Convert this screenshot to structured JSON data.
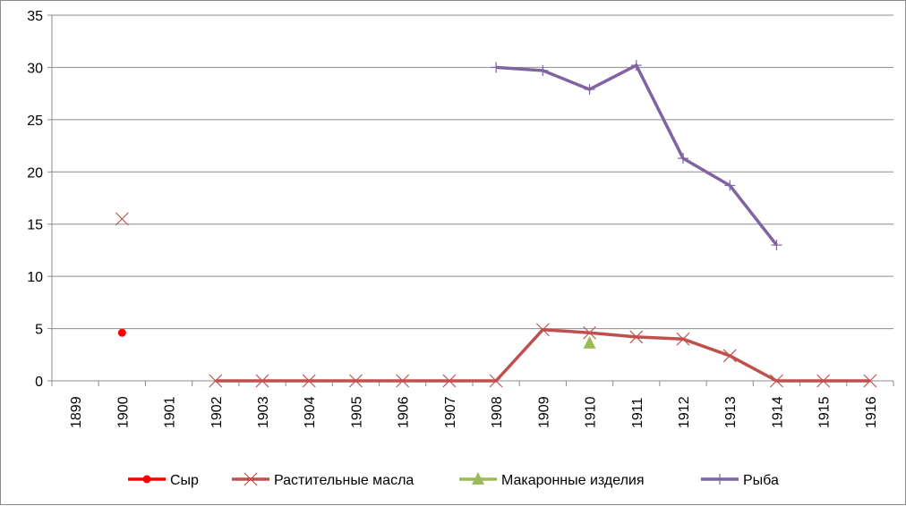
{
  "chart_data": {
    "type": "line",
    "categories": [
      "1899",
      "1900",
      "1901",
      "1902",
      "1903",
      "1904",
      "1905",
      "1906",
      "1907",
      "1908",
      "1909",
      "1910",
      "1911",
      "1912",
      "1913",
      "1914",
      "1915",
      "1916"
    ],
    "ylim": [
      0,
      35
    ],
    "yticks": [
      0,
      5,
      10,
      15,
      20,
      25,
      30,
      35
    ],
    "grid": true,
    "legend_position": "bottom",
    "series": [
      {
        "name": "Сыр",
        "color": "#ff0000",
        "marker": "circle",
        "values": [
          null,
          4.6,
          null,
          null,
          null,
          null,
          null,
          null,
          null,
          null,
          null,
          null,
          null,
          null,
          null,
          null,
          null,
          null
        ]
      },
      {
        "name": "Растительные масла",
        "color": "#c0504d",
        "marker": "x",
        "values": [
          null,
          15.5,
          null,
          0,
          0,
          0,
          0,
          0,
          0,
          0,
          4.9,
          4.6,
          4.2,
          4.0,
          2.4,
          0,
          0,
          0
        ]
      },
      {
        "name": "Макаронные изделия",
        "color": "#9bbb59",
        "marker": "triangle",
        "values": [
          null,
          null,
          null,
          null,
          null,
          null,
          null,
          null,
          null,
          null,
          null,
          3.6,
          null,
          null,
          null,
          null,
          null,
          null
        ]
      },
      {
        "name": "Рыба",
        "color": "#8064a2",
        "marker": "plus",
        "values": [
          null,
          null,
          null,
          null,
          null,
          null,
          null,
          null,
          null,
          30.0,
          29.7,
          27.9,
          30.2,
          21.3,
          18.7,
          13.0,
          null,
          null
        ]
      }
    ]
  }
}
